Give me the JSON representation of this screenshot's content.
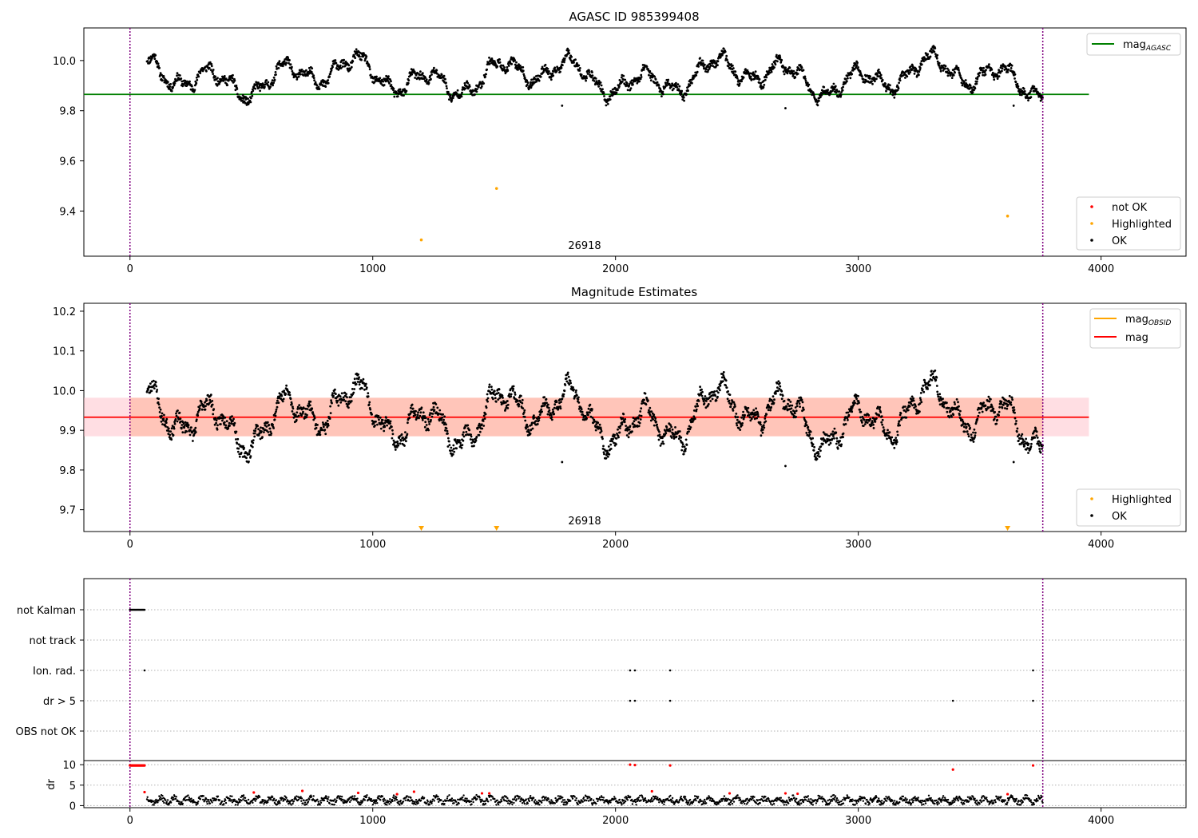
{
  "chart_data": [
    {
      "type": "scatter",
      "title": "AGASC ID 985399408",
      "xlim": [
        -190,
        4350
      ],
      "ylim": [
        9.22,
        10.13
      ],
      "xticks": [
        "0",
        "1000",
        "2000",
        "3000",
        "4000"
      ],
      "yticks": [
        "9.4",
        "9.6",
        "9.8",
        "10.0"
      ],
      "ytick_values": [
        9.4,
        9.6,
        9.8,
        10.0
      ],
      "xtick_values": [
        0,
        1000,
        2000,
        3000,
        4000
      ],
      "obs_start": 0,
      "obs_end": 3760,
      "obsid_label": "26918",
      "mag_agasc": 9.865,
      "mag_agasc_xrange": [
        -190,
        3950
      ],
      "series_range": [
        70,
        3760
      ],
      "baseline": 9.935,
      "highlighted_points": [
        [
          1200,
          9.285
        ],
        [
          1510,
          9.49
        ],
        [
          3615,
          9.38
        ]
      ],
      "outlier_points": [
        [
          2700,
          9.81
        ],
        [
          3640,
          9.82
        ],
        [
          1780,
          9.82
        ]
      ],
      "legend_line": {
        "label_base": "mag",
        "label_sub": "AGASC",
        "color": "#008000"
      },
      "legend_scatter": [
        {
          "label": "not OK",
          "color": "#ff0000"
        },
        {
          "label": "Highlighted",
          "color": "#ffa500"
        },
        {
          "label": "OK",
          "color": "#000000"
        }
      ]
    },
    {
      "type": "scatter",
      "title": "Magnitude Estimates",
      "xlim": [
        -190,
        4350
      ],
      "ylim": [
        9.645,
        10.22
      ],
      "xticks": [
        "0",
        "1000",
        "2000",
        "3000",
        "4000"
      ],
      "yticks": [
        "9.7",
        "9.8",
        "9.9",
        "10.0",
        "10.1",
        "10.2"
      ],
      "ytick_values": [
        9.7,
        9.8,
        9.9,
        10.0,
        10.1,
        10.2
      ],
      "xtick_values": [
        0,
        1000,
        2000,
        3000,
        4000
      ],
      "obs_start": 0,
      "obs_end": 3760,
      "obsid_label": "26918",
      "mag": 9.933,
      "mag_band": [
        9.885,
        9.982
      ],
      "band_xrange": [
        -190,
        3950
      ],
      "band_obs_xrange": [
        0,
        3760
      ],
      "highlighted_markers_x": [
        1200,
        1510,
        3615
      ],
      "legend_lines": [
        {
          "label_base": "mag",
          "label_sub": "OBSID",
          "color": "#ffa500"
        },
        {
          "label_base": "mag",
          "label_sub": "",
          "color": "#ff0000"
        }
      ],
      "legend_scatter": [
        {
          "label": "Highlighted",
          "color": "#ffa500"
        },
        {
          "label": "OK",
          "color": "#000000"
        }
      ]
    },
    {
      "type": "scatter",
      "title": "",
      "xlim": [
        -190,
        4350
      ],
      "flag_labels": [
        "not Kalman",
        "not track",
        "Ion. rad.",
        "dr > 5",
        "OBS not OK"
      ],
      "flags": {
        "not Kalman": {
          "x_range": [
            0,
            60
          ]
        },
        "not track": {
          "x_points": []
        },
        "Ion. rad.": {
          "x_points": [
            60,
            2060,
            2080,
            2225,
            3720
          ]
        },
        "dr > 5": {
          "x_points": [
            2060,
            2080,
            2225,
            3390,
            3720
          ]
        },
        "OBS not OK": {
          "x_points": []
        }
      },
      "dr_ylabel": "dr",
      "dr_ylim": [
        -0.5,
        11
      ],
      "dr_yticks": [
        "0",
        "5",
        "10"
      ],
      "dr_ytick_values": [
        0,
        5,
        10
      ],
      "dr_red_points": [
        [
          60,
          3.3
        ],
        [
          510,
          3.2
        ],
        [
          710,
          3.6
        ],
        [
          940,
          3.1
        ],
        [
          1100,
          2.8
        ],
        [
          1170,
          3.4
        ],
        [
          1450,
          3.0
        ],
        [
          1480,
          3.0
        ],
        [
          2060,
          10
        ],
        [
          2080,
          9.9
        ],
        [
          2150,
          3.5
        ],
        [
          2225,
          9.8
        ],
        [
          2470,
          3.0
        ],
        [
          2700,
          3.0
        ],
        [
          2750,
          2.9
        ],
        [
          3390,
          8.8
        ],
        [
          3615,
          2.8
        ],
        [
          3720,
          9.8
        ]
      ],
      "dr_cluster_x_range": [
        0,
        60
      ],
      "dr_cluster_value": 9.8,
      "xticks": [
        "0",
        "1000",
        "2000",
        "3000",
        "4000"
      ],
      "xtick_values": [
        0,
        1000,
        2000,
        3000,
        4000
      ]
    }
  ]
}
